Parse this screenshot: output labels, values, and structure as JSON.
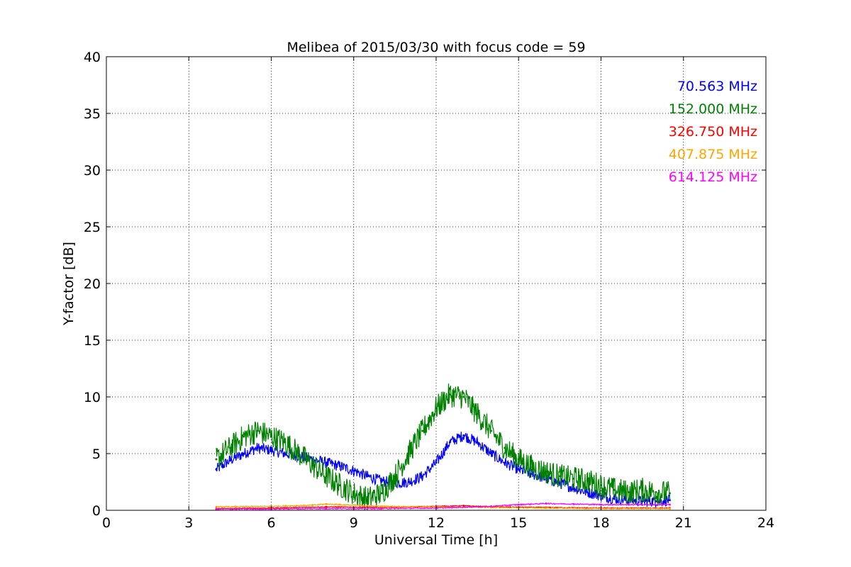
{
  "chart_data": {
    "type": "line",
    "title": "Melibea of 2015/03/30 with focus code = 59",
    "xlabel": "Universal Time [h]",
    "ylabel": "Y-factor [dB]",
    "xlim": [
      0,
      24
    ],
    "ylim": [
      0,
      40
    ],
    "xticks": [
      0,
      3,
      6,
      9,
      12,
      15,
      18,
      21,
      24
    ],
    "yticks": [
      0,
      5,
      10,
      15,
      20,
      25,
      30,
      35,
      40
    ],
    "grid": true,
    "legend_position": "top-right",
    "series": [
      {
        "name": "70.563 MHz",
        "color": "#0000ff",
        "noise": 0.5,
        "x": [
          4.0,
          4.5,
          5.0,
          5.5,
          6.0,
          6.5,
          7.0,
          7.5,
          8.0,
          8.5,
          9.0,
          9.5,
          10.0,
          10.5,
          11.0,
          11.5,
          12.0,
          12.5,
          13.0,
          13.5,
          14.0,
          14.5,
          15.0,
          15.5,
          16.0,
          16.5,
          17.0,
          17.5,
          18.0,
          18.5,
          19.0,
          19.5,
          20.0,
          20.5
        ],
        "y": [
          3.6,
          4.4,
          5.0,
          5.5,
          5.3,
          5.0,
          4.8,
          4.5,
          4.2,
          3.9,
          3.5,
          3.0,
          2.6,
          2.4,
          2.5,
          3.0,
          4.2,
          6.0,
          6.6,
          6.0,
          5.0,
          4.2,
          3.6,
          3.2,
          2.8,
          2.4,
          2.0,
          1.6,
          1.3,
          1.0,
          0.9,
          0.8,
          0.8,
          0.9
        ]
      },
      {
        "name": "152.000 MHz",
        "color": "#008000",
        "noise": 1.1,
        "x": [
          4.0,
          4.5,
          5.0,
          5.5,
          6.0,
          6.5,
          7.0,
          7.5,
          8.0,
          8.5,
          9.0,
          9.5,
          10.0,
          10.5,
          11.0,
          11.5,
          12.0,
          12.5,
          13.0,
          13.5,
          14.0,
          14.5,
          15.0,
          15.5,
          16.0,
          16.5,
          17.0,
          17.5,
          18.0,
          18.5,
          19.0,
          19.5,
          20.0,
          20.5
        ],
        "y": [
          4.5,
          5.5,
          6.5,
          7.0,
          6.5,
          6.0,
          5.0,
          4.0,
          3.0,
          2.2,
          1.5,
          1.0,
          1.5,
          3.0,
          5.0,
          7.0,
          9.0,
          10.2,
          10.0,
          8.5,
          7.0,
          5.5,
          4.5,
          3.8,
          3.4,
          3.0,
          2.8,
          2.6,
          2.2,
          1.8,
          1.6,
          1.8,
          1.6,
          1.5
        ]
      },
      {
        "name": "326.750 MHz",
        "color": "#ff0000",
        "noise": 0.04,
        "x": [
          4.0,
          6.0,
          8.0,
          10.0,
          12.0,
          13.0,
          14.0,
          16.0,
          18.0,
          20.5
        ],
        "y": [
          0.15,
          0.2,
          0.3,
          0.25,
          0.35,
          0.4,
          0.3,
          0.25,
          0.2,
          0.2
        ]
      },
      {
        "name": "407.875 MHz",
        "color": "#ffa500",
        "noise": 0.05,
        "x": [
          4.0,
          6.0,
          7.5,
          8.0,
          8.5,
          10.0,
          12.0,
          14.0,
          16.0,
          18.0,
          20.5
        ],
        "y": [
          0.3,
          0.35,
          0.45,
          0.55,
          0.5,
          0.35,
          0.3,
          0.25,
          0.2,
          0.15,
          0.15
        ]
      },
      {
        "name": "614.125 MHz",
        "color": "#ff00ff",
        "noise": 0.05,
        "x": [
          4.0,
          6.0,
          8.0,
          10.0,
          12.0,
          14.0,
          15.0,
          16.0,
          17.0,
          18.0,
          19.0,
          20.5
        ],
        "y": [
          0.1,
          0.12,
          0.15,
          0.15,
          0.2,
          0.35,
          0.5,
          0.6,
          0.55,
          0.5,
          0.5,
          0.5
        ]
      }
    ]
  }
}
